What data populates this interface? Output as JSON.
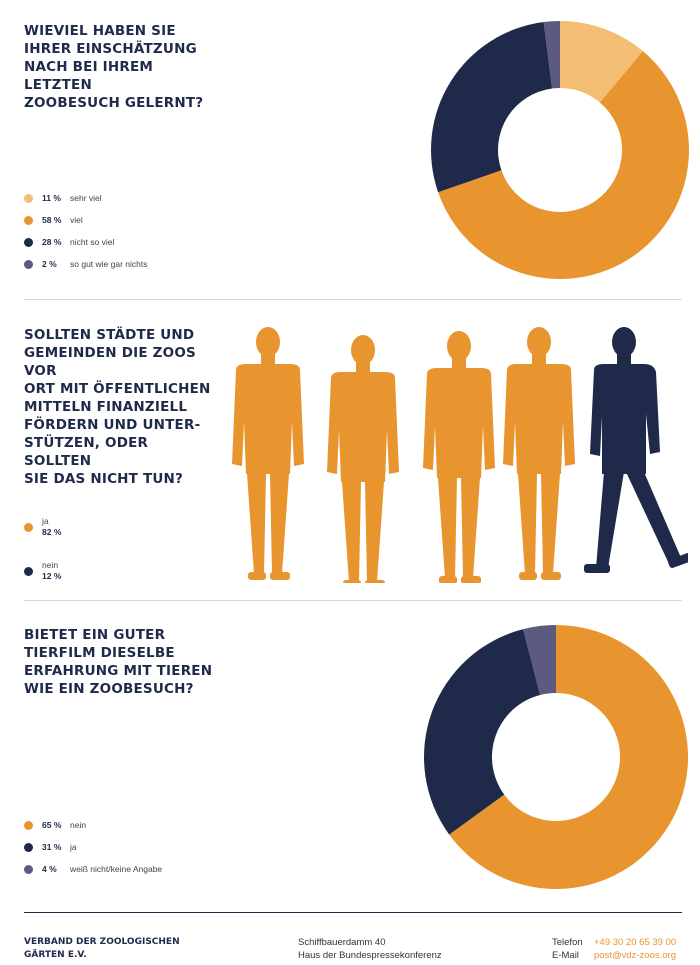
{
  "colors": {
    "navy": "#1f2a4a",
    "orange": "#e9952f",
    "light_orange": "#f3bd73",
    "slate": "#5c5a7e"
  },
  "chart_data": [
    {
      "type": "pie",
      "title": "WIEVIEL HABEN SIE\nIHRER EINSCHÄTZUNG\nNACH BEI IHREM LETZTEN\nZOOBESUCH GELERNT?",
      "slices": [
        {
          "label": "sehr viel",
          "value": 11,
          "pct_text": "11 %",
          "color": "#f3bd73"
        },
        {
          "label": "viel",
          "value": 58,
          "pct_text": "58 %",
          "color": "#e9952f"
        },
        {
          "label": "nicht so viel",
          "value": 28,
          "pct_text": "28 %",
          "color": "#1f2a4a"
        },
        {
          "label": "so gut wie gar nichts",
          "value": 2,
          "pct_text": "2 %",
          "color": "#5c5a7e"
        }
      ]
    },
    {
      "type": "bar",
      "title": "SOLLTEN STÄDTE UND\nGEMEINDEN DIE ZOOS VOR\nORT MIT ÖFFENTLICHEN\nMITTELN FINANZIELL\nFÖRDERN UND UNTER-\nSTÜTZEN, ODER SOLLTEN\nSIE DAS NICHT TUN?",
      "categories": [
        "ja",
        "nein"
      ],
      "values": [
        82,
        12
      ],
      "pct_texts": [
        "82 %",
        "12 %"
      ],
      "colors": [
        "#e9952f",
        "#1f2a4a"
      ]
    },
    {
      "type": "pie",
      "title": "BIETET EIN GUTER\nTIERFILM DIESELBE\nERFAHRUNG MIT TIEREN\nWIE EIN ZOOBESUCH?",
      "slices": [
        {
          "label": "nein",
          "value": 65,
          "pct_text": "65 %",
          "color": "#e9952f"
        },
        {
          "label": "ja",
          "value": 31,
          "pct_text": "31 %",
          "color": "#1f2a4a"
        },
        {
          "label": "weiß nicht/keine Angabe",
          "value": 4,
          "pct_text": "4 %",
          "color": "#5c5a7e"
        }
      ]
    }
  ],
  "footer": {
    "org": "VERBAND DER ZOOLOGISCHEN\nGÄRTEN E.V.",
    "address_line1": "Schiffbauerdamm 40",
    "address_line2": "Haus der Bundespressekonferenz",
    "phone_label": "Telefon",
    "phone": "+49 30 20 65 39 00",
    "email_label": "E-Mail",
    "email": "post@vdz-zoos.org"
  }
}
